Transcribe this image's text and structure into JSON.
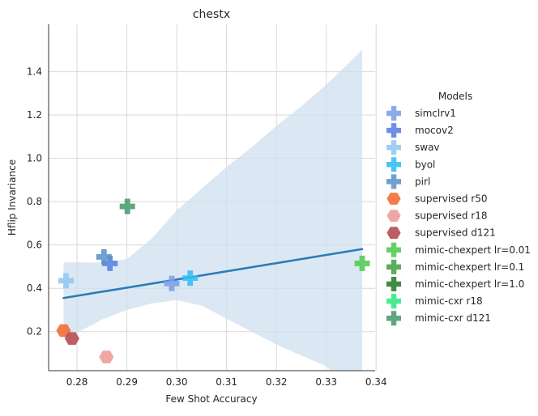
{
  "chart_data": {
    "type": "scatter",
    "title": "chestx",
    "xlabel": "Few Shot Accuracy",
    "ylabel": "Hflip Invariance",
    "xlim": [
      0.2743,
      0.3398
    ],
    "ylim": [
      0.0196,
      1.6189
    ],
    "xticks": [
      0.28,
      0.29,
      0.3,
      0.31,
      0.32,
      0.33,
      0.34
    ],
    "xtick_labels": [
      "0.28",
      "0.29",
      "0.30",
      "0.31",
      "0.32",
      "0.33",
      "0.34"
    ],
    "yticks": [
      0.2,
      0.4,
      0.6,
      0.8,
      1.0,
      1.2,
      1.4
    ],
    "ytick_labels": [
      "0.2",
      "0.4",
      "0.6",
      "0.8",
      "1.0",
      "1.2",
      "1.4"
    ],
    "grid": true,
    "legend": {
      "title": "Models",
      "placement": "right"
    },
    "series": [
      {
        "name": "simclrv1",
        "marker": "plus",
        "color": "#7c9ee6",
        "points": [
          [
            0.299,
            0.422
          ]
        ]
      },
      {
        "name": "mocov2",
        "marker": "plus",
        "color": "#5a7fe0",
        "points": [
          [
            0.2866,
            0.515
          ]
        ]
      },
      {
        "name": "swav",
        "marker": "plus",
        "color": "#93c7f0",
        "points": [
          [
            0.2778,
            0.435
          ]
        ]
      },
      {
        "name": "byol",
        "marker": "plus",
        "color": "#33bdf2",
        "points": [
          [
            0.3027,
            0.447
          ]
        ]
      },
      {
        "name": "pirl",
        "marker": "plus",
        "color": "#5b93c7",
        "points": [
          [
            0.2854,
            0.545
          ]
        ]
      },
      {
        "name": "supervised r50",
        "marker": "hexagon",
        "color": "#f36a2f",
        "points": [
          [
            0.2773,
            0.205
          ]
        ]
      },
      {
        "name": "supervised r18",
        "marker": "hexagon",
        "color": "#ef9a9a",
        "points": [
          [
            0.2859,
            0.083
          ]
        ]
      },
      {
        "name": "supervised d121",
        "marker": "hexagon",
        "color": "#b5484f",
        "points": [
          [
            0.279,
            0.168
          ]
        ]
      },
      {
        "name": "mimic-chexpert lr=0.01",
        "marker": "plus",
        "color": "#52c852",
        "points": [
          [
            0.3372,
            0.515
          ]
        ]
      },
      {
        "name": "mimic-chexpert lr=0.1",
        "marker": "plus",
        "color": "#47a047",
        "points": []
      },
      {
        "name": "mimic-chexpert lr=1.0",
        "marker": "plus",
        "color": "#2a7a2a",
        "points": []
      },
      {
        "name": "mimic-cxr r18",
        "marker": "plus",
        "color": "#2ee882",
        "points": []
      },
      {
        "name": "mimic-cxr d121",
        "marker": "plus",
        "color": "#4a9a6e",
        "points": [
          [
            0.2901,
            0.778
          ]
        ]
      }
    ],
    "regression": {
      "x": [
        0.2773,
        0.3372
      ],
      "y": [
        0.355,
        0.581
      ],
      "color": "#2b7bba"
    },
    "confidence_band": {
      "color": "#cfe0ef",
      "x": [
        0.2773,
        0.28,
        0.285,
        0.29,
        0.295,
        0.3,
        0.305,
        0.31,
        0.315,
        0.32,
        0.325,
        0.33,
        0.3372
      ],
      "upper": [
        0.52,
        0.52,
        0.519,
        0.535,
        0.63,
        0.76,
        0.86,
        0.96,
        1.05,
        1.15,
        1.24,
        1.34,
        1.5
      ],
      "lower": [
        0.17,
        0.195,
        0.255,
        0.3,
        0.33,
        0.345,
        0.32,
        0.26,
        0.2,
        0.14,
        0.09,
        0.04,
        -0.12
      ]
    }
  }
}
